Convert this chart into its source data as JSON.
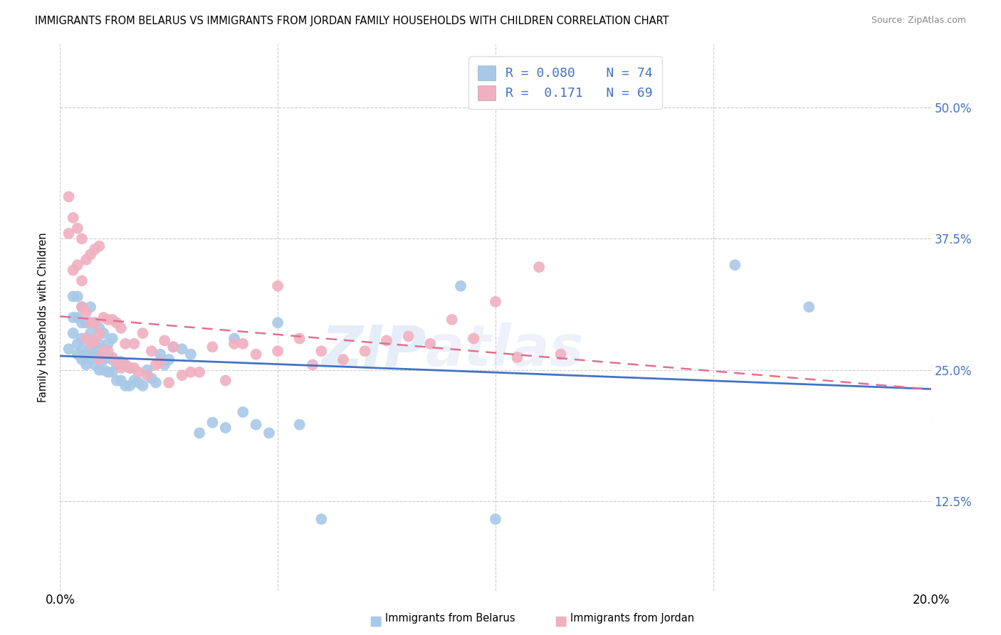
{
  "title": "IMMIGRANTS FROM BELARUS VS IMMIGRANTS FROM JORDAN FAMILY HOUSEHOLDS WITH CHILDREN CORRELATION CHART",
  "source": "Source: ZipAtlas.com",
  "ylabel": "Family Households with Children",
  "xlim": [
    0.0,
    0.2
  ],
  "ylim": [
    0.04,
    0.56
  ],
  "yticks": [
    0.125,
    0.25,
    0.375,
    0.5
  ],
  "ytick_labels": [
    "12.5%",
    "25.0%",
    "37.5%",
    "50.0%"
  ],
  "xticks": [
    0.0,
    0.05,
    0.1,
    0.15,
    0.2
  ],
  "xtick_labels": [
    "0.0%",
    "",
    "",
    "",
    "20.0%"
  ],
  "color_belarus": "#a8c8e8",
  "color_jordan": "#f0b0c0",
  "line_color_belarus": "#4472c4",
  "line_color_jordan": "#e07090",
  "watermark_zip": "ZIP",
  "watermark_atlas": "atlas",
  "belarus_x": [
    0.002,
    0.003,
    0.003,
    0.003,
    0.004,
    0.004,
    0.004,
    0.004,
    0.005,
    0.005,
    0.005,
    0.005,
    0.005,
    0.006,
    0.006,
    0.006,
    0.006,
    0.007,
    0.007,
    0.007,
    0.007,
    0.007,
    0.008,
    0.008,
    0.008,
    0.008,
    0.009,
    0.009,
    0.009,
    0.009,
    0.01,
    0.01,
    0.01,
    0.01,
    0.011,
    0.011,
    0.011,
    0.012,
    0.012,
    0.012,
    0.013,
    0.013,
    0.014,
    0.014,
    0.015,
    0.015,
    0.016,
    0.016,
    0.017,
    0.018,
    0.019,
    0.02,
    0.021,
    0.022,
    0.023,
    0.024,
    0.025,
    0.026,
    0.028,
    0.03,
    0.032,
    0.035,
    0.038,
    0.04,
    0.042,
    0.045,
    0.048,
    0.05,
    0.055,
    0.06,
    0.092,
    0.1,
    0.155,
    0.172
  ],
  "belarus_y": [
    0.27,
    0.285,
    0.3,
    0.32,
    0.265,
    0.275,
    0.3,
    0.32,
    0.26,
    0.27,
    0.28,
    0.295,
    0.31,
    0.255,
    0.265,
    0.28,
    0.295,
    0.26,
    0.27,
    0.285,
    0.295,
    0.31,
    0.255,
    0.265,
    0.275,
    0.295,
    0.25,
    0.265,
    0.275,
    0.29,
    0.25,
    0.26,
    0.27,
    0.285,
    0.248,
    0.262,
    0.275,
    0.248,
    0.26,
    0.28,
    0.24,
    0.255,
    0.24,
    0.258,
    0.235,
    0.255,
    0.235,
    0.252,
    0.24,
    0.238,
    0.235,
    0.25,
    0.242,
    0.238,
    0.265,
    0.255,
    0.26,
    0.272,
    0.27,
    0.265,
    0.19,
    0.2,
    0.195,
    0.28,
    0.21,
    0.198,
    0.19,
    0.295,
    0.198,
    0.108,
    0.33,
    0.108,
    0.35,
    0.31
  ],
  "jordan_x": [
    0.002,
    0.002,
    0.003,
    0.003,
    0.004,
    0.004,
    0.005,
    0.005,
    0.005,
    0.006,
    0.006,
    0.006,
    0.007,
    0.007,
    0.007,
    0.008,
    0.008,
    0.008,
    0.009,
    0.009,
    0.009,
    0.01,
    0.01,
    0.011,
    0.011,
    0.012,
    0.012,
    0.013,
    0.013,
    0.014,
    0.014,
    0.015,
    0.015,
    0.016,
    0.017,
    0.017,
    0.018,
    0.019,
    0.02,
    0.021,
    0.022,
    0.023,
    0.024,
    0.025,
    0.026,
    0.028,
    0.03,
    0.032,
    0.035,
    0.038,
    0.04,
    0.042,
    0.045,
    0.05,
    0.055,
    0.058,
    0.06,
    0.065,
    0.07,
    0.075,
    0.08,
    0.085,
    0.09,
    0.095,
    0.1,
    0.105,
    0.11,
    0.115,
    0.05
  ],
  "jordan_y": [
    0.38,
    0.415,
    0.345,
    0.395,
    0.35,
    0.385,
    0.31,
    0.335,
    0.375,
    0.28,
    0.305,
    0.355,
    0.275,
    0.295,
    0.36,
    0.278,
    0.295,
    0.365,
    0.26,
    0.285,
    0.368,
    0.268,
    0.3,
    0.268,
    0.298,
    0.262,
    0.298,
    0.258,
    0.295,
    0.252,
    0.29,
    0.255,
    0.275,
    0.252,
    0.252,
    0.275,
    0.248,
    0.285,
    0.245,
    0.268,
    0.255,
    0.258,
    0.278,
    0.238,
    0.272,
    0.245,
    0.248,
    0.248,
    0.272,
    0.24,
    0.275,
    0.275,
    0.265,
    0.268,
    0.28,
    0.255,
    0.268,
    0.26,
    0.268,
    0.278,
    0.282,
    0.275,
    0.298,
    0.28,
    0.315,
    0.262,
    0.348,
    0.265,
    0.33
  ]
}
